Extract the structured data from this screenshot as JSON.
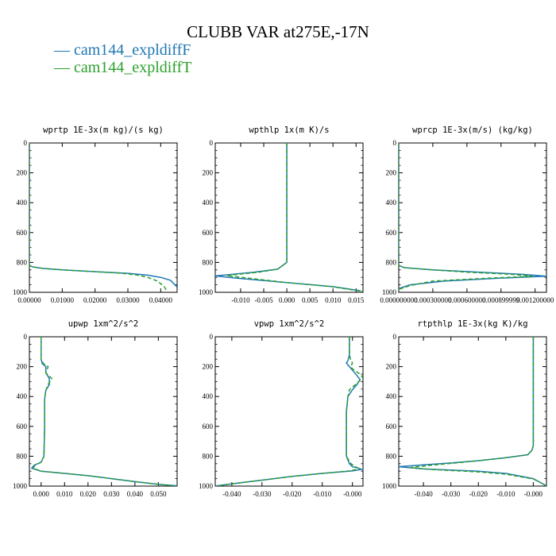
{
  "title": "CLUBB VAR at275E,-17N",
  "legend": [
    {
      "label": "cam144_expldiffF",
      "color": "#1f77b4"
    },
    {
      "label": "cam144_expldiffT",
      "color": "#2ca02c"
    }
  ],
  "chart_data": [
    {
      "type": "line",
      "title": "wprtp  1E-3x(m kg)/(s kg)",
      "xlim": [
        0,
        0.045
      ],
      "ylim": [
        1000,
        0
      ],
      "y_reversed": true,
      "xticks": [
        0,
        0.01,
        0.02,
        0.03,
        0.04
      ],
      "xtick_labels": [
        "0.00000",
        "0.01000",
        "0.02000",
        "0.03000",
        "0.04000"
      ],
      "yticks": [
        0,
        200,
        400,
        600,
        800,
        1000
      ],
      "ytick_labels": [
        "0",
        "200",
        "400",
        "600",
        "800",
        "1000"
      ],
      "series": [
        {
          "name": "cam144_expldiffF",
          "dashed": false,
          "points": [
            [
              0,
              0
            ],
            [
              0,
              820
            ],
            [
              0.001,
              830
            ],
            [
              0.004,
              840
            ],
            [
              0.01,
              850
            ],
            [
              0.02,
              862
            ],
            [
              0.03,
              873
            ],
            [
              0.036,
              885
            ],
            [
              0.04,
              900
            ],
            [
              0.043,
              920
            ],
            [
              0.045,
              965
            ]
          ]
        },
        {
          "name": "cam144_expldiffT",
          "dashed": true,
          "points": [
            [
              0,
              0
            ],
            [
              0,
              820
            ],
            [
              0.001,
              830
            ],
            [
              0.004,
              840
            ],
            [
              0.01,
              850
            ],
            [
              0.02,
              862
            ],
            [
              0.028,
              872
            ],
            [
              0.033,
              885
            ],
            [
              0.036,
              900
            ],
            [
              0.039,
              925
            ],
            [
              0.041,
              960
            ],
            [
              0.042,
              995
            ]
          ]
        }
      ]
    },
    {
      "type": "line",
      "title": "wpthlp  1x(m K)/s",
      "xlim": [
        -0.0155,
        0.0165
      ],
      "ylim": [
        1000,
        0
      ],
      "y_reversed": true,
      "xticks": [
        -0.01,
        -0.005,
        0,
        0.005,
        0.01,
        0.015
      ],
      "xtick_labels": [
        "-0.010",
        "-0.005",
        "0.000",
        "0.005",
        "0.010",
        "0.015"
      ],
      "yticks": [
        0,
        200,
        400,
        600,
        800,
        1000
      ],
      "ytick_labels": [
        "0",
        "200",
        "400",
        "600",
        "800",
        "1000"
      ],
      "series": [
        {
          "name": "cam144_expldiffF",
          "dashed": false,
          "points": [
            [
              0,
              0
            ],
            [
              0,
              800
            ],
            [
              -0.002,
              845
            ],
            [
              -0.007,
              865
            ],
            [
              -0.012,
              880
            ],
            [
              -0.0155,
              890
            ],
            [
              -0.011,
              905
            ],
            [
              0,
              935
            ],
            [
              0.01,
              962
            ],
            [
              0.016,
              990
            ]
          ]
        },
        {
          "name": "cam144_expldiffT",
          "dashed": true,
          "points": [
            [
              0,
              0
            ],
            [
              0,
              800
            ],
            [
              -0.002,
              845
            ],
            [
              -0.006,
              865
            ],
            [
              -0.01,
              878
            ],
            [
              -0.013,
              888
            ],
            [
              -0.009,
              903
            ],
            [
              0,
              935
            ],
            [
              0.01,
              963
            ],
            [
              0.0165,
              995
            ]
          ]
        }
      ]
    },
    {
      "type": "line",
      "title": "wprcp  1E-3x(m/s) (kg/kg)",
      "xlim": [
        0,
        0.0013
      ],
      "ylim": [
        1000,
        0
      ],
      "y_reversed": true,
      "xticks": [
        0,
        0.0003,
        0.0006,
        0.0009,
        0.0012
      ],
      "xtick_labels": [
        "0.000000000",
        "0.000300000",
        "0.000600000",
        "0.000899999",
        "0.001200000"
      ],
      "yticks": [
        0,
        200,
        400,
        600,
        800,
        1000
      ],
      "ytick_labels": [
        "0",
        "200",
        "400",
        "600",
        "800",
        "1000"
      ],
      "series": [
        {
          "name": "cam144_expldiffF",
          "dashed": false,
          "points": [
            [
              0,
              0
            ],
            [
              0,
              820
            ],
            [
              5e-05,
              835
            ],
            [
              0.0003,
              850
            ],
            [
              0.0007,
              865
            ],
            [
              0.0011,
              880
            ],
            [
              0.0013,
              892
            ],
            [
              0.0009,
              905
            ],
            [
              0.0004,
              925
            ],
            [
              0.0001,
              950
            ],
            [
              0,
              975
            ]
          ]
        },
        {
          "name": "cam144_expldiffT",
          "dashed": true,
          "points": [
            [
              0,
              0
            ],
            [
              0,
              820
            ],
            [
              5e-05,
              835
            ],
            [
              0.0003,
              850
            ],
            [
              0.0006,
              865
            ],
            [
              0.001,
              880
            ],
            [
              0.00118,
              893
            ],
            [
              0.0008,
              905
            ],
            [
              0.0003,
              925
            ],
            [
              0.0001,
              955
            ],
            [
              0,
              980
            ]
          ]
        }
      ]
    },
    {
      "type": "line",
      "title": "upwp  1xm^2/s^2",
      "xlim": [
        -0.005,
        0.058
      ],
      "ylim": [
        1000,
        0
      ],
      "y_reversed": true,
      "xticks": [
        0,
        0.01,
        0.02,
        0.03,
        0.04,
        0.05
      ],
      "xtick_labels": [
        "0.000",
        "0.010",
        "0.020",
        "0.030",
        "0.040",
        "0.050"
      ],
      "yticks": [
        0,
        200,
        400,
        600,
        800,
        1000
      ],
      "ytick_labels": [
        "0",
        "200",
        "400",
        "600",
        "800",
        "1000"
      ],
      "series": [
        {
          "name": "cam144_expldiffF",
          "dashed": false,
          "points": [
            [
              0,
              0
            ],
            [
              0,
              150
            ],
            [
              0.0005,
              180
            ],
            [
              0.002,
              200
            ],
            [
              0.002,
              240
            ],
            [
              0.0035,
              280
            ],
            [
              0.0035,
              320
            ],
            [
              0.002,
              360
            ],
            [
              0.0015,
              420
            ],
            [
              0.0015,
              600
            ],
            [
              0.0012,
              800
            ],
            [
              0,
              840
            ],
            [
              -0.003,
              860
            ],
            [
              -0.004,
              880
            ],
            [
              0,
              900
            ],
            [
              0.01,
              915
            ],
            [
              0.02,
              930
            ],
            [
              0.03,
              950
            ],
            [
              0.04,
              970
            ],
            [
              0.05,
              988
            ],
            [
              0.058,
              998
            ]
          ]
        },
        {
          "name": "cam144_expldiffT",
          "dashed": true,
          "points": [
            [
              0,
              0
            ],
            [
              0,
              150
            ],
            [
              0.001,
              180
            ],
            [
              0.003,
              200
            ],
            [
              0.002,
              240
            ],
            [
              0.0045,
              280
            ],
            [
              0.003,
              320
            ],
            [
              0.002,
              360
            ],
            [
              0.0015,
              420
            ],
            [
              0.0015,
              600
            ],
            [
              0.0012,
              800
            ],
            [
              0,
              840
            ],
            [
              -0.0025,
              860
            ],
            [
              -0.0035,
              880
            ],
            [
              0,
              900
            ],
            [
              0.01,
              915
            ],
            [
              0.02,
              930
            ],
            [
              0.03,
              950
            ],
            [
              0.04,
              970
            ],
            [
              0.05,
              988
            ],
            [
              0.057,
              998
            ]
          ]
        }
      ]
    },
    {
      "type": "line",
      "title": "vpwp  1xm^2/s^2",
      "xlim": [
        -0.0455,
        0.0035
      ],
      "ylim": [
        1000,
        0
      ],
      "y_reversed": true,
      "xticks": [
        -0.04,
        -0.03,
        -0.02,
        -0.01,
        0
      ],
      "xtick_labels": [
        "-0.040",
        "-0.030",
        "-0.020",
        "-0.010",
        "-0.000"
      ],
      "yticks": [
        0,
        200,
        400,
        600,
        800,
        1000
      ],
      "ytick_labels": [
        "0",
        "200",
        "400",
        "600",
        "800",
        "1000"
      ],
      "series": [
        {
          "name": "cam144_expldiffF",
          "dashed": false,
          "points": [
            [
              -0.001,
              0
            ],
            [
              -0.001,
              120
            ],
            [
              -0.0015,
              160
            ],
            [
              -0.002,
              175
            ],
            [
              -0.001,
              200
            ],
            [
              0.0005,
              235
            ],
            [
              0.0025,
              285
            ],
            [
              0.0015,
              320
            ],
            [
              0,
              355
            ],
            [
              -0.0015,
              400
            ],
            [
              -0.002,
              500
            ],
            [
              -0.002,
              700
            ],
            [
              -0.002,
              800
            ],
            [
              -0.001,
              850
            ],
            [
              0,
              870
            ],
            [
              0.002,
              880
            ],
            [
              0.003,
              888
            ],
            [
              0,
              898
            ],
            [
              -0.01,
              915
            ],
            [
              -0.02,
              935
            ],
            [
              -0.03,
              960
            ],
            [
              -0.04,
              985
            ],
            [
              -0.045,
              998
            ]
          ]
        },
        {
          "name": "cam144_expldiffT",
          "dashed": true,
          "points": [
            [
              -0.001,
              0
            ],
            [
              -0.001,
              120
            ],
            [
              -0.0005,
              160
            ],
            [
              0,
              175
            ],
            [
              -0.0005,
              200
            ],
            [
              0,
              215
            ],
            [
              0.0025,
              250
            ],
            [
              0.0035,
              275
            ],
            [
              0.001,
              320
            ],
            [
              -0.001,
              355
            ],
            [
              -0.0015,
              400
            ],
            [
              -0.002,
              500
            ],
            [
              -0.002,
              700
            ],
            [
              -0.002,
              800
            ],
            [
              -0.0005,
              850
            ],
            [
              0.001,
              870
            ],
            [
              0.002,
              880
            ],
            [
              0.0015,
              888
            ],
            [
              -0.001,
              898
            ],
            [
              -0.01,
              915
            ],
            [
              -0.02,
              935
            ],
            [
              -0.03,
              960
            ],
            [
              -0.04,
              985
            ],
            [
              -0.0445,
              998
            ]
          ]
        }
      ]
    },
    {
      "type": "line",
      "title": "rtpthlp  1E-3x(kg K)/kg",
      "xlim": [
        -0.049,
        0.0048
      ],
      "ylim": [
        1000,
        0
      ],
      "y_reversed": true,
      "xticks": [
        -0.04,
        -0.03,
        -0.02,
        -0.01,
        0
      ],
      "xtick_labels": [
        "-0.040",
        "-0.030",
        "-0.020",
        "-0.010",
        "-0.000"
      ],
      "yticks": [
        0,
        200,
        400,
        600,
        800,
        1000
      ],
      "ytick_labels": [
        "0",
        "200",
        "400",
        "600",
        "800",
        "1000"
      ],
      "series": [
        {
          "name": "cam144_expldiffF",
          "dashed": false,
          "points": [
            [
              0,
              0
            ],
            [
              0,
              730
            ],
            [
              -0.0005,
              760
            ],
            [
              -0.002,
              790
            ],
            [
              -0.01,
              810
            ],
            [
              -0.02,
              830
            ],
            [
              -0.03,
              845
            ],
            [
              -0.04,
              858
            ],
            [
              -0.049,
              870
            ],
            [
              -0.04,
              885
            ],
            [
              -0.02,
              900
            ],
            [
              -0.01,
              915
            ],
            [
              0,
              950
            ],
            [
              0.003,
              980
            ],
            [
              0.0048,
              998
            ]
          ]
        },
        {
          "name": "cam144_expldiffT",
          "dashed": true,
          "points": [
            [
              0,
              0
            ],
            [
              0,
              730
            ],
            [
              -0.0005,
              760
            ],
            [
              -0.002,
              790
            ],
            [
              -0.01,
              810
            ],
            [
              -0.02,
              830
            ],
            [
              -0.03,
              848
            ],
            [
              -0.038,
              862
            ],
            [
              -0.045,
              876
            ],
            [
              -0.036,
              890
            ],
            [
              -0.02,
              905
            ],
            [
              -0.01,
              920
            ],
            [
              0,
              952
            ],
            [
              0.003,
              980
            ],
            [
              0.0045,
              998
            ]
          ]
        }
      ]
    }
  ]
}
